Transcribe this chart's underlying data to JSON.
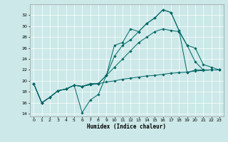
{
  "xlabel": "Humidex (Indice chaleur)",
  "bg_color": "#cce8e8",
  "line_color": "#006666",
  "ylim": [
    13.5,
    34.0
  ],
  "xlim": [
    -0.5,
    23.5
  ],
  "yticks": [
    14,
    16,
    18,
    20,
    22,
    24,
    26,
    28,
    30,
    32
  ],
  "xticks": [
    0,
    1,
    2,
    3,
    4,
    5,
    6,
    7,
    8,
    9,
    10,
    11,
    12,
    13,
    14,
    15,
    16,
    17,
    18,
    19,
    20,
    21,
    22,
    23
  ],
  "series": [
    {
      "x": [
        0,
        1,
        2,
        3,
        4,
        5,
        6,
        7,
        8,
        9,
        10,
        11,
        12,
        13,
        14,
        15,
        16,
        17,
        18,
        19,
        20,
        21,
        22,
        23
      ],
      "y": [
        19.5,
        16.0,
        17.0,
        18.2,
        18.5,
        19.2,
        14.2,
        16.5,
        17.5,
        21.0,
        26.5,
        27.0,
        29.5,
        29.0,
        30.5,
        31.5,
        33.0,
        32.5,
        29.2,
        26.5,
        23.5,
        22.0,
        22.0,
        22.0
      ]
    },
    {
      "x": [
        0,
        1,
        2,
        3,
        4,
        5,
        6,
        7,
        8,
        9,
        10,
        11,
        12,
        13,
        14,
        15,
        16,
        17,
        18,
        19,
        20,
        21,
        22,
        23
      ],
      "y": [
        19.5,
        16.0,
        17.0,
        18.2,
        18.5,
        19.2,
        19.0,
        19.5,
        19.5,
        21.0,
        24.5,
        26.5,
        27.5,
        29.0,
        30.5,
        31.5,
        33.0,
        32.5,
        29.2,
        21.5,
        22.0,
        22.0,
        22.0,
        22.0
      ]
    },
    {
      "x": [
        0,
        1,
        2,
        3,
        4,
        5,
        6,
        7,
        8,
        9,
        10,
        11,
        12,
        13,
        14,
        15,
        16,
        17,
        18,
        19,
        20,
        21,
        22,
        23
      ],
      "y": [
        19.5,
        16.0,
        17.0,
        18.2,
        18.5,
        19.2,
        19.0,
        19.3,
        19.5,
        19.8,
        20.0,
        20.3,
        20.5,
        20.7,
        20.9,
        21.0,
        21.2,
        21.4,
        21.5,
        21.6,
        21.8,
        21.9,
        22.0,
        22.0
      ]
    },
    {
      "x": [
        0,
        1,
        2,
        3,
        4,
        5,
        6,
        7,
        8,
        9,
        10,
        11,
        12,
        13,
        14,
        15,
        16,
        17,
        18,
        19,
        20,
        21,
        22,
        23
      ],
      "y": [
        19.5,
        16.0,
        17.0,
        18.2,
        18.5,
        19.2,
        19.0,
        19.3,
        19.5,
        21.0,
        22.5,
        24.0,
        25.5,
        27.0,
        28.0,
        29.0,
        29.5,
        29.2,
        29.0,
        26.5,
        26.0,
        23.0,
        22.5,
        22.0
      ]
    }
  ]
}
